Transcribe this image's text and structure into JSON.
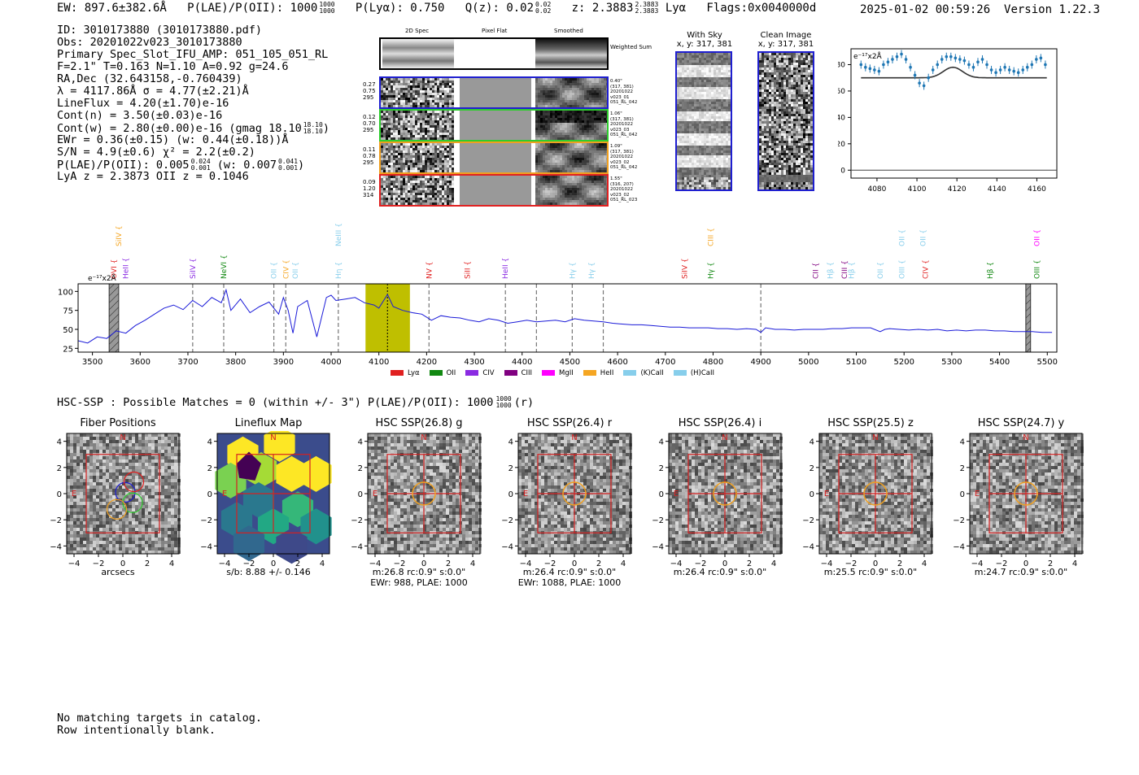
{
  "header": {
    "ew": "EW: 897.6±382.6Å",
    "plae_label": "P(LAE)/P(OII): 1000",
    "plae_hi": "1000",
    "plae_lo": "1000",
    "plya": "P(Lyα): 0.750",
    "qz_label": "Q(z): 0.02",
    "qz_hi": "0.02",
    "qz_lo": "0.02",
    "z_label": "z: 2.3883",
    "z_hi": "2.3883",
    "z_lo": "2.3883",
    "z_line": "Lyα",
    "flags": "Flags:0x0040000d",
    "timestamp": "2025-01-02 00:59:26",
    "version": "Version 1.22.3"
  },
  "info_lines": [
    "ID: 3010173880 (3010173880.pdf)",
    "Obs: 20201022v023_3010173880",
    "Primary Spec_Slot_IFU_AMP: 051_105_051_RL",
    "F=2.1\"  T=0.163  N=1.10  A=0.92  g=24.6",
    "RA,Dec (32.643158,-0.760439)",
    "λ = 4117.86Å   σ = 4.77(±2.21)Å",
    "LineFlux = 4.20(±1.70)e-16",
    "Cont(n) = 3.50(±0.03)e-16",
    "Cont(w) = 2.80(±0.00)e-16 (gmag 18.10",
    "EWr = 0.36(±0.15)  (w: 0.44(±0.18))Å",
    "S/N = 4.9(±0.6)  χ² = 2.2(±0.2)",
    "P(LAE)/P(OII): 0.005",
    "LyA z = 2.3873  OII z = 0.1046"
  ],
  "info_sub": {
    "gmag_hi": "18.10",
    "gmag_lo": "18.10",
    "plae_hi": "0.024",
    "plae_lo": "0.001",
    "plae_w": "(w: 0.007",
    "plae_w_hi": "0.041",
    "plae_w_lo": "0.001"
  },
  "cutouts": {
    "col_headers": [
      "2D Spec",
      "Pixel Flat",
      "Smoothed"
    ],
    "weighted_sum": "Weighted Sum",
    "rows": [
      {
        "color": "#1f1fd0",
        "left": [
          "0.27",
          "0.75",
          "295"
        ],
        "right": [
          "0.40\"",
          "(317, 381)",
          "20201022",
          "v023_01",
          "051_RL_042"
        ]
      },
      {
        "color": "#2ecc2e",
        "left": [
          "0.12",
          "0.70",
          "295"
        ],
        "right": [
          "1.06\"",
          "(317, 381)",
          "20201022",
          "v023_03",
          "051_RL_042"
        ]
      },
      {
        "color": "#f0a020",
        "left": [
          "0.11",
          "0.78",
          "295"
        ],
        "right": [
          "1.09\"",
          "(317, 381)",
          "20201022",
          "v023_02",
          "051_RL_042"
        ]
      },
      {
        "color": "#e02020",
        "left": [
          "0.09",
          "1.20",
          "314"
        ],
        "right": [
          "1.55\"",
          "(316, 207)",
          "20201022",
          "v023_02",
          "051_RL_023"
        ]
      }
    ]
  },
  "sky_panels": [
    {
      "title": "With Sky",
      "sub": "x, y: 317, 381"
    },
    {
      "title": "Clean Image",
      "sub": "x, y: 317, 381"
    }
  ],
  "zoom_plot": {
    "unit_label": "e⁻¹⁷x2Å",
    "x_ticks": [
      "4080",
      "4100",
      "4120",
      "4140",
      "4160"
    ],
    "y_ticks": [
      "0",
      "20",
      "40",
      "60",
      "80"
    ]
  },
  "spectrum": {
    "unit_label": "e⁻¹⁷x2Å",
    "x_ticks": [
      "3500",
      "3600",
      "3700",
      "3800",
      "3900",
      "4000",
      "4100",
      "4200",
      "4300",
      "4400",
      "4500",
      "4600",
      "4700",
      "4800",
      "4900",
      "5000",
      "5100",
      "5200",
      "5300",
      "5400",
      "5500"
    ],
    "y_ticks": [
      "25",
      "50",
      "75",
      "100"
    ],
    "legend": [
      {
        "label": "Lyα",
        "color": "#e02020"
      },
      {
        "label": "OII",
        "color": "#118811"
      },
      {
        "label": "CIV",
        "color": "#8a2be2"
      },
      {
        "label": "CIII",
        "color": "#800080"
      },
      {
        "label": "MgII",
        "color": "#ff00ff"
      },
      {
        "label": "HeII",
        "color": "#f5a623"
      },
      {
        "label": "(K)CaII",
        "color": "#87ceeb"
      },
      {
        "label": "(H)CaII",
        "color": "#87ceeb"
      }
    ],
    "line_labels": [
      {
        "text": "OVI",
        "x": 3545,
        "row": 1,
        "color": "#e02020"
      },
      {
        "text": "HeII",
        "x": 3570,
        "row": 1,
        "color": "#8a2be2"
      },
      {
        "text": "SiIV",
        "x": 3555,
        "row": 0,
        "color": "#f5a623"
      },
      {
        "text": "SiIV",
        "x": 3710,
        "row": 1,
        "color": "#8a2be2"
      },
      {
        "text": "NeVI",
        "x": 3775,
        "row": 1,
        "color": "#118811"
      },
      {
        "text": "OII",
        "x": 3880,
        "row": 1,
        "color": "#87ceeb"
      },
      {
        "text": "CIV",
        "x": 3905,
        "row": 1,
        "color": "#f5a623"
      },
      {
        "text": "OII",
        "x": 3925,
        "row": 1,
        "color": "#87ceeb"
      },
      {
        "text": "NeIII",
        "x": 4015,
        "row": 0,
        "color": "#87ceeb"
      },
      {
        "text": "Hη",
        "x": 4015,
        "row": 1,
        "color": "#87ceeb"
      },
      {
        "text": "NV",
        "x": 4205,
        "row": 1,
        "color": "#e02020"
      },
      {
        "text": "SiII",
        "x": 4285,
        "row": 1,
        "color": "#e02020"
      },
      {
        "text": "HeII",
        "x": 4365,
        "row": 1,
        "color": "#8a2be2"
      },
      {
        "text": "Hγ",
        "x": 4505,
        "row": 1,
        "color": "#87ceeb"
      },
      {
        "text": "Hγ",
        "x": 4545,
        "row": 1,
        "color": "#87ceeb"
      },
      {
        "text": "SiIV",
        "x": 4740,
        "row": 1,
        "color": "#e02020"
      },
      {
        "text": "CIII",
        "x": 4795,
        "row": 0,
        "color": "#f5a623"
      },
      {
        "text": "Hγ",
        "x": 4795,
        "row": 1,
        "color": "#118811"
      },
      {
        "text": "CII",
        "x": 5015,
        "row": 1,
        "color": "#800080"
      },
      {
        "text": "Hβ",
        "x": 5045,
        "row": 1,
        "color": "#87ceeb"
      },
      {
        "text": "CIII",
        "x": 5075,
        "row": 1,
        "color": "#800080"
      },
      {
        "text": "Hβ",
        "x": 5090,
        "row": 1,
        "color": "#87ceeb"
      },
      {
        "text": "OII",
        "x": 5150,
        "row": 1,
        "color": "#87ceeb"
      },
      {
        "text": "OII",
        "x": 5195,
        "row": 0,
        "color": "#87ceeb"
      },
      {
        "text": "OIII",
        "x": 5195,
        "row": 1,
        "color": "#87ceeb"
      },
      {
        "text": "OII",
        "x": 5240,
        "row": 0,
        "color": "#87ceeb"
      },
      {
        "text": "CIV",
        "x": 5245,
        "row": 1,
        "color": "#e02020"
      },
      {
        "text": "Hβ",
        "x": 5380,
        "row": 1,
        "color": "#118811"
      },
      {
        "text": "OII",
        "x": 5478,
        "row": 0,
        "color": "#ff00ff"
      },
      {
        "text": "OIII",
        "x": 5478,
        "row": 1,
        "color": "#118811"
      }
    ],
    "dashed_lines": [
      3710,
      3775,
      3880,
      3905,
      4015,
      4205,
      4365,
      4430,
      4505,
      4570,
      4900
    ],
    "highlight": {
      "start": 4072,
      "end": 4165,
      "center": 4118,
      "color": "#bfbf00"
    },
    "hatched": [
      [
        3535,
        3555
      ],
      [
        5455,
        5465
      ]
    ],
    "chart_data": {
      "type": "line",
      "xlabel": "",
      "ylabel": "",
      "xlim": [
        3470,
        5520
      ],
      "ylim": [
        20,
        110
      ],
      "x": [
        3470,
        3490,
        3510,
        3530,
        3550,
        3570,
        3590,
        3610,
        3630,
        3650,
        3670,
        3690,
        3710,
        3730,
        3750,
        3770,
        3780,
        3790,
        3810,
        3830,
        3850,
        3870,
        3890,
        3900,
        3910,
        3920,
        3930,
        3950,
        3970,
        3990,
        4000,
        4010,
        4030,
        4050,
        4070,
        4090,
        4100,
        4110,
        4118,
        4130,
        4150,
        4170,
        4190,
        4210,
        4230,
        4250,
        4270,
        4290,
        4310,
        4330,
        4350,
        4370,
        4390,
        4410,
        4430,
        4450,
        4470,
        4490,
        4510,
        4530,
        4550,
        4570,
        4590,
        4610,
        4630,
        4650,
        4670,
        4690,
        4710,
        4730,
        4750,
        4770,
        4790,
        4810,
        4830,
        4850,
        4870,
        4890,
        4900,
        4910,
        4930,
        4950,
        4970,
        4990,
        5010,
        5030,
        5050,
        5070,
        5090,
        5110,
        5130,
        5150,
        5160,
        5170,
        5190,
        5210,
        5230,
        5250,
        5270,
        5290,
        5310,
        5330,
        5350,
        5370,
        5390,
        5410,
        5430,
        5450,
        5470,
        5490,
        5510
      ],
      "values": [
        35,
        32,
        40,
        38,
        48,
        45,
        55,
        62,
        70,
        78,
        82,
        76,
        88,
        80,
        92,
        85,
        102,
        75,
        90,
        72,
        80,
        86,
        70,
        92,
        75,
        45,
        80,
        88,
        40,
        92,
        95,
        88,
        90,
        92,
        85,
        82,
        78,
        88,
        96,
        80,
        75,
        72,
        70,
        62,
        68,
        66,
        65,
        62,
        60,
        64,
        62,
        58,
        60,
        62,
        60,
        61,
        62,
        60,
        64,
        62,
        61,
        60,
        58,
        57,
        56,
        56,
        55,
        54,
        53,
        53,
        52,
        52,
        52,
        51,
        51,
        50,
        51,
        50,
        46,
        52,
        50,
        50,
        49,
        50,
        50,
        50,
        51,
        51,
        52,
        52,
        52,
        47,
        50,
        51,
        50,
        49,
        50,
        49,
        50,
        48,
        49,
        48,
        49,
        49,
        48,
        48,
        47,
        47,
        47,
        46,
        46
      ]
    }
  },
  "hsc": {
    "summary_text": "HSC-SSP : Possible Matches = 0 (within +/- 3\")  P(LAE)/P(OII): 1000",
    "summary_hi": "1000",
    "summary_lo": "1000",
    "summary_suffix": "(r)",
    "panels": [
      {
        "title": "Fiber Positions",
        "caption1": "arcsecs",
        "caption2": ""
      },
      {
        "title": "Lineflux Map",
        "caption1": "s/b: 8.88 +/- 0.146",
        "caption2": ""
      },
      {
        "title": "HSC SSP(26.8) g",
        "caption1": "m:26.8 rc:0.9\"  s:0.0\"",
        "caption2": "EWr: 988, PLAE: 1000"
      },
      {
        "title": "HSC SSP(26.4) r",
        "caption1": "m:26.4 rc:0.9\"  s:0.0\"",
        "caption2": "EWr: 1088, PLAE: 1000"
      },
      {
        "title": "HSC SSP(26.4) i",
        "caption1": "m:26.4 rc:0.9\"  s:0.0\"",
        "caption2": ""
      },
      {
        "title": "HSC SSP(25.5) z",
        "caption1": "m:25.5 rc:0.9\"  s:0.0\"",
        "caption2": ""
      },
      {
        "title": "HSC SSP(24.7) y",
        "caption1": "m:24.7 rc:0.9\"  s:0.0\"",
        "caption2": ""
      }
    ],
    "axis_ticks": [
      "−4",
      "−2",
      "0",
      "2",
      "4"
    ],
    "compass_n": "N",
    "compass_e": "E"
  },
  "footer": {
    "line1": "No matching targets in catalog.",
    "line2": "Row intentionally blank."
  }
}
